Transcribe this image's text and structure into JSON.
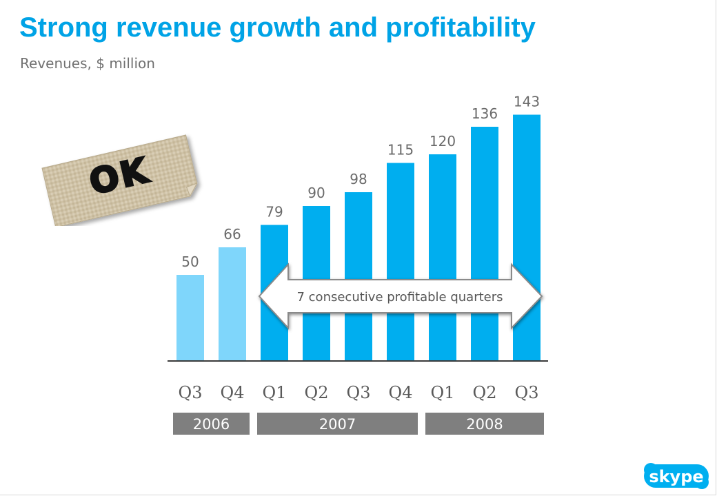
{
  "title": "Strong revenue growth and profitability",
  "subtitle": "Revenues, $ million",
  "sticker": {
    "text": "OK"
  },
  "annotation": "7 consecutive profitable quarters",
  "logo": {
    "text": "skype"
  },
  "colors": {
    "title": "#00a3e6",
    "bar_highlight": "#00aeef",
    "bar_light": "#7fd6fb",
    "year_box": "#7f7f7f",
    "label_text": "#595959"
  },
  "chart_data": {
    "type": "bar",
    "title": "Strong revenue growth and profitability",
    "subtitle": "Revenues, $ million",
    "categories": [
      "Q3",
      "Q4",
      "Q1",
      "Q2",
      "Q3",
      "Q4",
      "Q1",
      "Q2",
      "Q3"
    ],
    "values": [
      50,
      66,
      79,
      90,
      98,
      115,
      120,
      136,
      143
    ],
    "bar_styles": [
      "light",
      "light",
      "dark",
      "dark",
      "dark",
      "dark",
      "dark",
      "dark",
      "dark"
    ],
    "years": [
      {
        "label": "2006",
        "start": 0,
        "end": 1
      },
      {
        "label": "2007",
        "start": 2,
        "end": 5
      },
      {
        "label": "2008",
        "start": 6,
        "end": 8
      }
    ],
    "ylim": [
      0,
      150
    ],
    "grid": false,
    "legend": "none"
  }
}
